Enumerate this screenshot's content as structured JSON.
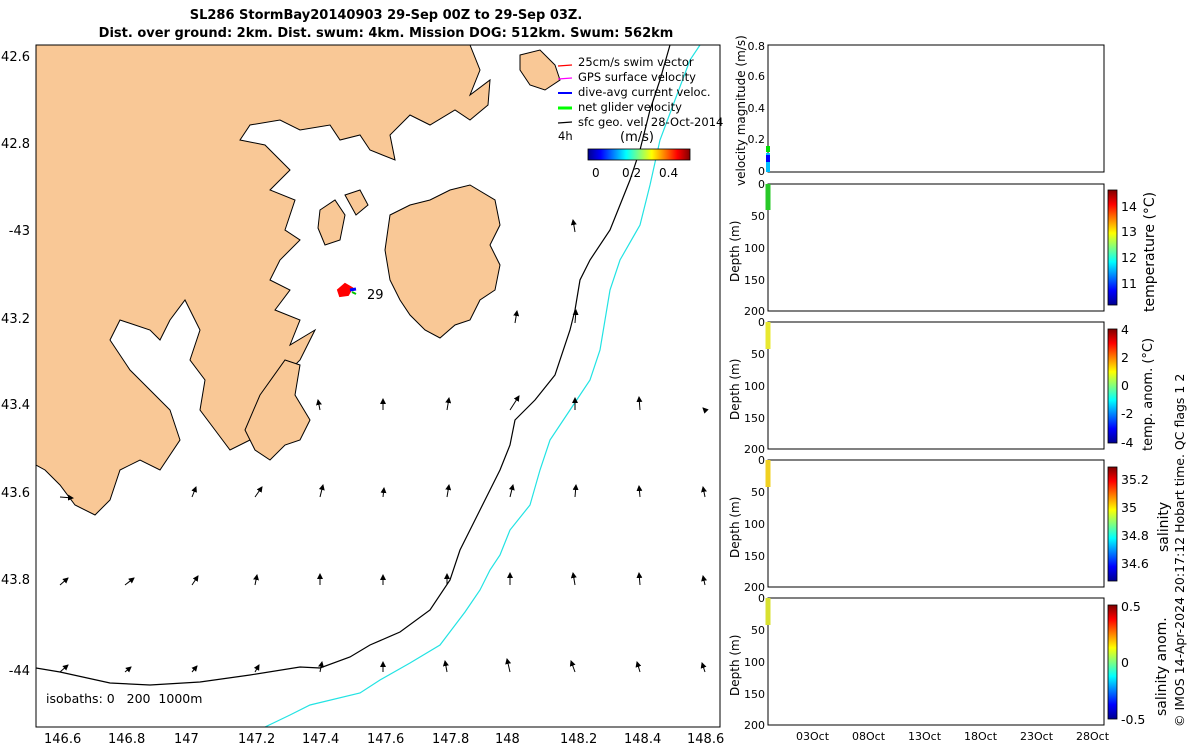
{
  "title": {
    "line1": "SL286 StormBay20140903 29-Sep 00Z to 29-Sep 03Z.",
    "line2": "Dist. over ground: 2km. Dist. swum: 4km. Mission DOG: 512km. Swum: 562km"
  },
  "map": {
    "lon_ticks": [
      "146.6",
      "146.8",
      "147",
      "147.2",
      "147.4",
      "147.6",
      "147.8",
      "148",
      "148.2",
      "148.4",
      "148.6"
    ],
    "lat_ticks": [
      "42.6",
      "42.8",
      "-43",
      "43.2",
      "43.4",
      "43.6",
      "43.8",
      "-44"
    ],
    "legend": [
      {
        "label": "25cm/s swim vector",
        "color": "#ff0000"
      },
      {
        "label": "GPS surface velocity",
        "color": "#ff00ff"
      },
      {
        "label": "dive-avg current veloc.",
        "color": "#0000ff"
      },
      {
        "label": "net glider velocity",
        "color": "#00ff00"
      },
      {
        "label": "sfc geo. vel. 28-Oct-2014",
        "color": "#000000"
      }
    ],
    "legend_extra": "4h",
    "colorbar_label": "(m/s)",
    "colorbar_ticks": [
      "0",
      "0.2",
      "0.4"
    ],
    "track_label": "29",
    "isobaths_text": "isobaths: 0   200  1000m",
    "land_color": "#f9c896",
    "contour_200_color": "#000000",
    "contour_1000_color": "#22e3e3"
  },
  "panels": {
    "x_ticks": [
      "03Oct",
      "08Oct",
      "13Oct",
      "18Oct",
      "23Oct",
      "28Oct"
    ],
    "velocity": {
      "ylabel": "velocity magnitude (m/s)",
      "y_ticks": [
        "0.8",
        "0.6",
        "0.4",
        "0.2",
        "0"
      ]
    },
    "depth_ticks": [
      "0",
      "50",
      "100",
      "150",
      "200"
    ],
    "depth_label": "Depth (m)",
    "temperature": {
      "cb_label": "temperature (°C)",
      "cb_ticks": [
        "14",
        "13",
        "12",
        "11"
      ]
    },
    "temp_anom": {
      "cb_label": "temp. anom. (°C)",
      "cb_ticks": [
        "4",
        "2",
        "0",
        "-2",
        "-4"
      ]
    },
    "salinity": {
      "cb_label": "salinity",
      "cb_ticks": [
        "35.2",
        "35",
        "34.8",
        "34.6"
      ]
    },
    "sal_anom": {
      "cb_label": "salinity anom.",
      "cb_ticks": [
        "0.5",
        "0",
        "-0.5"
      ]
    }
  },
  "footer": "© IMOS 14-Apr-2024 20:17:12 Hobart time. QC flags 1  2"
}
